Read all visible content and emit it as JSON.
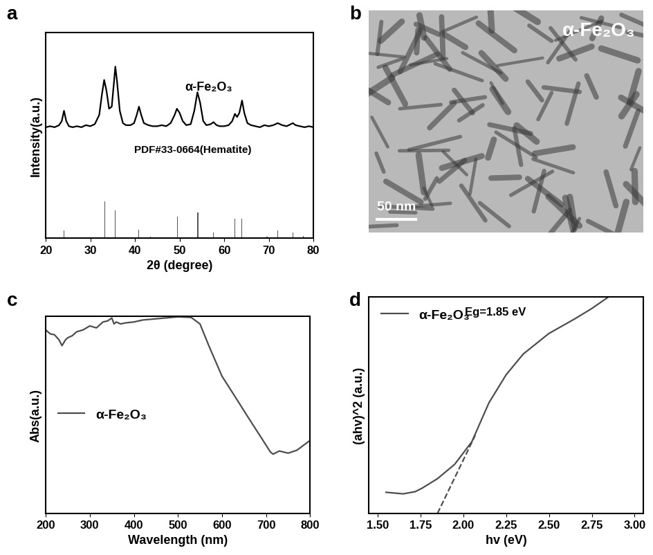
{
  "chart_data": [
    {
      "type": "line",
      "panel_label": "a",
      "x_label": "2θ (degree)",
      "y_label": "Intensity(a.u.)",
      "xlim": [
        20,
        80
      ],
      "xticks": [
        20,
        30,
        40,
        50,
        60,
        70,
        80
      ],
      "ylim": [
        0,
        100
      ],
      "tick_labels": "x",
      "annotations": [
        "α-Fe₂O₃",
        "PDF#33-0664(Hematite)"
      ],
      "series": [
        {
          "type": "line",
          "color": "#000000",
          "x": [
            20,
            21,
            22,
            23,
            23.6,
            24.1,
            24.6,
            25.2,
            26,
            27,
            28,
            29,
            30,
            31,
            32,
            32.6,
            33.1,
            33.6,
            34.2,
            34.8,
            35.3,
            35.6,
            36.0,
            36.6,
            37.3,
            38,
            39,
            39.8,
            40.4,
            40.9,
            41.4,
            42,
            43,
            44,
            45,
            46,
            47,
            48,
            48.9,
            49.4,
            50.0,
            50.7,
            51.5,
            52.5,
            53.3,
            54.0,
            54.6,
            55.3,
            56,
            57,
            57.6,
            58.3,
            59,
            60,
            61,
            61.8,
            62.4,
            62.9,
            63.4,
            64.0,
            64.5,
            65.2,
            66,
            67,
            68,
            69,
            70,
            71,
            72,
            73,
            74,
            75.4,
            76,
            77,
            78,
            79,
            80
          ],
          "values": [
            54,
            54.5,
            54,
            55,
            57,
            62,
            57,
            54.5,
            54,
            54.5,
            54,
            55,
            54.5,
            55.5,
            60,
            70,
            77,
            72,
            63,
            64,
            76,
            83.5,
            76,
            62,
            56,
            55,
            55,
            56,
            60,
            64,
            60,
            56,
            55,
            54.5,
            54.5,
            55,
            54.5,
            56,
            60,
            63,
            61,
            57,
            55,
            55.5,
            62,
            71,
            66,
            57,
            55,
            55.5,
            56.5,
            55,
            54.5,
            54.5,
            55,
            57,
            60.5,
            59,
            61,
            67,
            61,
            56,
            55,
            54.5,
            54,
            55,
            54.5,
            55,
            56,
            55,
            54.5,
            56,
            55,
            54.5,
            54,
            54.5,
            54
          ]
        },
        {
          "type": "bar",
          "color": "#555555",
          "x": [
            24.1,
            33.2,
            35.6,
            40.9,
            43.5,
            49.5,
            54.1,
            57.6,
            62.4,
            64.0,
            69.6,
            72.0,
            75.4,
            77.7
          ],
          "values": [
            3.7,
            18,
            13.5,
            4,
            0.8,
            10.5,
            12.5,
            2.7,
            9.5,
            9.5,
            0.8,
            3.7,
            2.7,
            1
          ]
        }
      ]
    },
    {
      "type": "image",
      "panel_label": "b",
      "title": "α-Fe₂O₃",
      "scale_bar": "50 nm"
    },
    {
      "type": "line",
      "panel_label": "c",
      "x_label": "Wavelength (nm)",
      "y_label": "Abs(a.u.)",
      "xlim": [
        200,
        800
      ],
      "xticks": [
        200,
        300,
        400,
        500,
        600,
        700,
        800
      ],
      "ylim": [
        0,
        100
      ],
      "tick_labels": "x",
      "legend": "center left",
      "series": [
        {
          "name": "α-Fe₂O₃",
          "type": "line",
          "color": "#4d4d4d",
          "x": [
            200,
            210,
            220,
            230,
            237,
            245,
            250,
            260,
            270,
            285,
            300,
            315,
            330,
            340,
            350,
            355,
            360,
            370,
            380,
            400,
            420,
            450,
            500,
            530,
            550,
            570,
            600,
            630,
            660,
            690,
            710,
            716,
            730,
            750,
            770,
            800
          ],
          "values": [
            93,
            91,
            90.5,
            88,
            85,
            88,
            89,
            90,
            92,
            93,
            95,
            94,
            97,
            97.5,
            99,
            96,
            97,
            96,
            96.5,
            97,
            98,
            98.6,
            99.6,
            99.3,
            96,
            85,
            69.5,
            59,
            48.4,
            38,
            31,
            30,
            31.6,
            30.5,
            32,
            37
          ]
        }
      ]
    },
    {
      "type": "line",
      "panel_label": "d",
      "x_label": "hv (eV)",
      "y_label": "(ahv)^2 (a.u.)",
      "xlim": [
        1.45,
        3.05
      ],
      "xticks": [
        {
          "value": 1.5,
          "label": "1.50"
        },
        1.75,
        {
          "value": 2.0,
          "label": "2.00"
        },
        2.25,
        {
          "value": 2.5,
          "label": "2.50"
        },
        2.75,
        {
          "value": 3.0,
          "label": "3.00"
        }
      ],
      "ylim": [
        0,
        100
      ],
      "tick_labels": "x",
      "legend": "upper left",
      "annotations": [
        "Eg=1.85 eV"
      ],
      "series": [
        {
          "name": "α-Fe₂O₃",
          "type": "line",
          "color": "#4d4d4d",
          "x": [
            1.55,
            1.65,
            1.72,
            1.76,
            1.85,
            1.95,
            2.05,
            2.15,
            2.25,
            2.35,
            2.5,
            2.65,
            2.75,
            2.85
          ],
          "values": [
            9.7,
            9,
            10,
            11.6,
            16,
            22.6,
            33,
            51,
            63.9,
            73.5,
            83,
            89.7,
            94.5,
            100
          ]
        },
        {
          "type": "line",
          "color": "#4d4d4d",
          "line_style": "dashed",
          "x": [
            1.85,
            2.07
          ],
          "values": [
            0,
            36
          ]
        }
      ]
    }
  ]
}
